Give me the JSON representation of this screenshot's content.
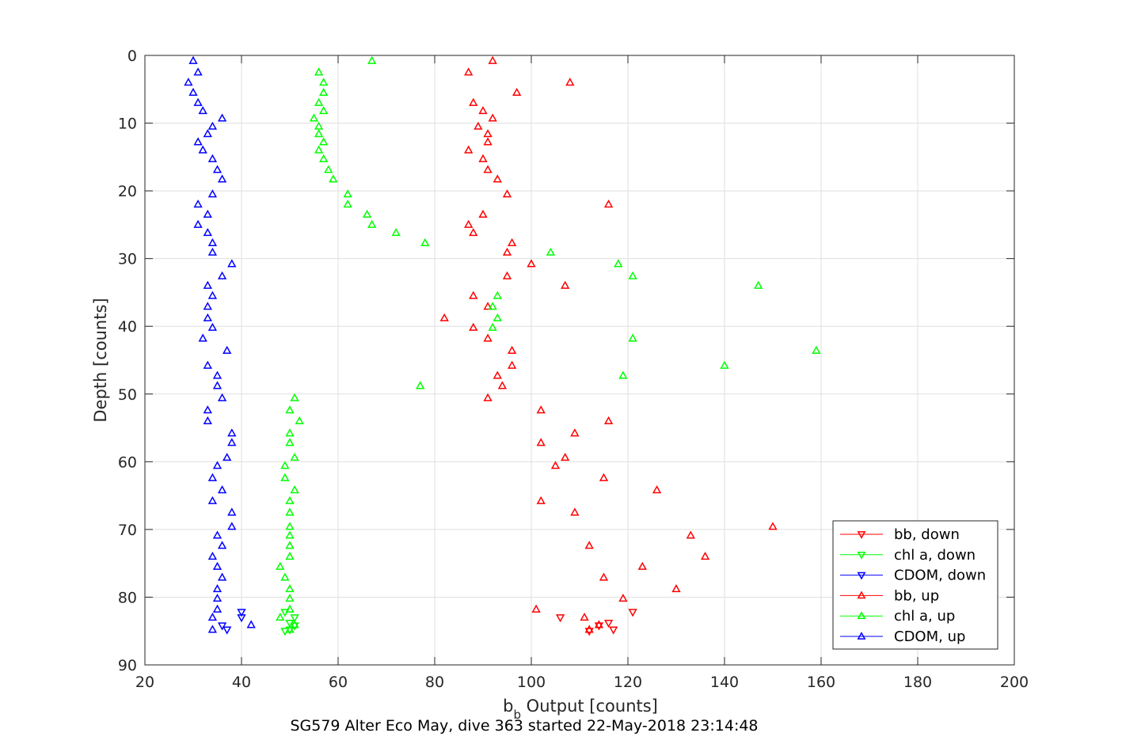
{
  "chart_data": {
    "type": "scatter",
    "title": "SG579 Alter Eco May, dive 363 started 22-May-2018 23:14:48",
    "xlabel_main": "b",
    "xlabel_sub": "b",
    "xlabel_rest": " Output [counts]",
    "ylabel": "Depth [counts]",
    "xlim": [
      20,
      200
    ],
    "ylim": [
      0,
      90
    ],
    "y_reversed": true,
    "grid": true,
    "x_ticks": [
      20,
      40,
      60,
      80,
      100,
      120,
      140,
      160,
      180,
      200
    ],
    "y_ticks": [
      0,
      10,
      20,
      30,
      40,
      50,
      60,
      70,
      80,
      90
    ],
    "legend_position": "bottom-right",
    "series": [
      {
        "name": "bb, down",
        "color": "#ff0000",
        "marker": "triangle-down",
        "points": [
          [
            121,
            82.2
          ],
          [
            106,
            83.0
          ],
          [
            116,
            83.8
          ],
          [
            114,
            84.2
          ],
          [
            117,
            84.8
          ],
          [
            112,
            85.0
          ]
        ]
      },
      {
        "name": "chl a, down",
        "color": "#00ff00",
        "marker": "triangle-down",
        "points": [
          [
            49,
            82.2
          ],
          [
            51,
            83.0
          ],
          [
            50,
            83.8
          ],
          [
            51,
            84.2
          ],
          [
            50,
            84.8
          ],
          [
            49,
            85.0
          ]
        ]
      },
      {
        "name": "CDOM, down",
        "color": "#0000ff",
        "marker": "triangle-down",
        "points": [
          [
            40,
            82.2
          ],
          [
            40,
            83.0
          ],
          [
            36,
            84.2
          ],
          [
            37,
            84.8
          ]
        ]
      },
      {
        "name": "bb, up",
        "color": "#ff0000",
        "marker": "triangle-up",
        "points": [
          [
            92,
            0.8
          ],
          [
            87,
            2.5
          ],
          [
            108,
            4.0
          ],
          [
            97,
            5.5
          ],
          [
            88,
            7.0
          ],
          [
            90,
            8.2
          ],
          [
            92,
            9.3
          ],
          [
            89,
            10.5
          ],
          [
            91,
            11.6
          ],
          [
            91,
            12.8
          ],
          [
            87,
            14.0
          ],
          [
            90,
            15.3
          ],
          [
            91,
            16.9
          ],
          [
            93,
            18.3
          ],
          [
            95,
            20.5
          ],
          [
            116,
            22.0
          ],
          [
            90,
            23.5
          ],
          [
            87,
            25.0
          ],
          [
            88,
            26.2
          ],
          [
            96,
            27.7
          ],
          [
            95,
            29.1
          ],
          [
            100,
            30.8
          ],
          [
            95,
            32.6
          ],
          [
            107,
            34.0
          ],
          [
            88,
            35.5
          ],
          [
            91,
            37.1
          ],
          [
            82,
            38.8
          ],
          [
            88,
            40.2
          ],
          [
            91,
            41.8
          ],
          [
            96,
            43.6
          ],
          [
            96,
            45.8
          ],
          [
            93,
            47.3
          ],
          [
            94,
            48.8
          ],
          [
            91,
            50.6
          ],
          [
            102,
            52.4
          ],
          [
            116,
            54.0
          ],
          [
            109,
            55.8
          ],
          [
            102,
            57.2
          ],
          [
            107,
            59.4
          ],
          [
            105,
            60.6
          ],
          [
            115,
            62.4
          ],
          [
            126,
            64.2
          ],
          [
            102,
            65.8
          ],
          [
            109,
            67.5
          ],
          [
            150,
            69.6
          ],
          [
            133,
            70.9
          ],
          [
            112,
            72.4
          ],
          [
            136,
            74.0
          ],
          [
            123,
            75.5
          ],
          [
            115,
            77.1
          ],
          [
            130,
            78.8
          ],
          [
            119,
            80.2
          ],
          [
            101,
            81.8
          ],
          [
            111,
            83.0
          ],
          [
            114,
            84.1
          ],
          [
            112,
            84.8
          ]
        ]
      },
      {
        "name": "chl a, up",
        "color": "#00ff00",
        "marker": "triangle-up",
        "points": [
          [
            67,
            0.8
          ],
          [
            56,
            2.5
          ],
          [
            57,
            4.0
          ],
          [
            57,
            5.5
          ],
          [
            56,
            7.0
          ],
          [
            57,
            8.2
          ],
          [
            55,
            9.3
          ],
          [
            56,
            10.5
          ],
          [
            56,
            11.6
          ],
          [
            57,
            12.8
          ],
          [
            56,
            14.0
          ],
          [
            57,
            15.3
          ],
          [
            58,
            16.9
          ],
          [
            59,
            18.3
          ],
          [
            62,
            20.5
          ],
          [
            62,
            22.0
          ],
          [
            66,
            23.5
          ],
          [
            67,
            25.0
          ],
          [
            72,
            26.2
          ],
          [
            78,
            27.7
          ],
          [
            104,
            29.1
          ],
          [
            118,
            30.8
          ],
          [
            121,
            32.6
          ],
          [
            147,
            34.0
          ],
          [
            93,
            35.5
          ],
          [
            92,
            37.1
          ],
          [
            93,
            38.8
          ],
          [
            92,
            40.2
          ],
          [
            121,
            41.8
          ],
          [
            159,
            43.6
          ],
          [
            140,
            45.8
          ],
          [
            119,
            47.3
          ],
          [
            77,
            48.8
          ],
          [
            51,
            50.6
          ],
          [
            50,
            52.4
          ],
          [
            52,
            54.0
          ],
          [
            50,
            55.8
          ],
          [
            50,
            57.2
          ],
          [
            51,
            59.4
          ],
          [
            49,
            60.6
          ],
          [
            49,
            62.4
          ],
          [
            51,
            64.2
          ],
          [
            50,
            65.8
          ],
          [
            50,
            67.5
          ],
          [
            50,
            69.6
          ],
          [
            50,
            70.9
          ],
          [
            50,
            72.4
          ],
          [
            50,
            74.0
          ],
          [
            48,
            75.5
          ],
          [
            49,
            77.1
          ],
          [
            50,
            78.8
          ],
          [
            50,
            80.2
          ],
          [
            50,
            81.8
          ],
          [
            48,
            83.0
          ],
          [
            51,
            84.1
          ],
          [
            50,
            84.8
          ]
        ]
      },
      {
        "name": "CDOM, up",
        "color": "#0000ff",
        "marker": "triangle-up",
        "points": [
          [
            30,
            0.8
          ],
          [
            31,
            2.5
          ],
          [
            29,
            4.0
          ],
          [
            30,
            5.5
          ],
          [
            31,
            7.0
          ],
          [
            32,
            8.2
          ],
          [
            36,
            9.3
          ],
          [
            34,
            10.5
          ],
          [
            33,
            11.6
          ],
          [
            31,
            12.8
          ],
          [
            32,
            14.0
          ],
          [
            34,
            15.3
          ],
          [
            35,
            16.9
          ],
          [
            36,
            18.3
          ],
          [
            34,
            20.5
          ],
          [
            31,
            22.0
          ],
          [
            33,
            23.5
          ],
          [
            31,
            25.0
          ],
          [
            33,
            26.2
          ],
          [
            34,
            27.7
          ],
          [
            34,
            29.1
          ],
          [
            38,
            30.8
          ],
          [
            36,
            32.6
          ],
          [
            33,
            34.0
          ],
          [
            34,
            35.5
          ],
          [
            33,
            37.1
          ],
          [
            33,
            38.8
          ],
          [
            34,
            40.2
          ],
          [
            32,
            41.8
          ],
          [
            37,
            43.6
          ],
          [
            33,
            45.8
          ],
          [
            35,
            47.3
          ],
          [
            35,
            48.8
          ],
          [
            36,
            50.6
          ],
          [
            33,
            52.4
          ],
          [
            33,
            54.0
          ],
          [
            38,
            55.8
          ],
          [
            38,
            57.2
          ],
          [
            37,
            59.4
          ],
          [
            35,
            60.6
          ],
          [
            34,
            62.4
          ],
          [
            36,
            64.2
          ],
          [
            34,
            65.8
          ],
          [
            38,
            67.5
          ],
          [
            38,
            69.6
          ],
          [
            35,
            70.9
          ],
          [
            36,
            72.4
          ],
          [
            34,
            74.0
          ],
          [
            35,
            75.5
          ],
          [
            36,
            77.1
          ],
          [
            35,
            78.8
          ],
          [
            35,
            80.2
          ],
          [
            35,
            81.8
          ],
          [
            34,
            83.0
          ],
          [
            42,
            84.1
          ],
          [
            34,
            84.8
          ]
        ]
      }
    ]
  }
}
